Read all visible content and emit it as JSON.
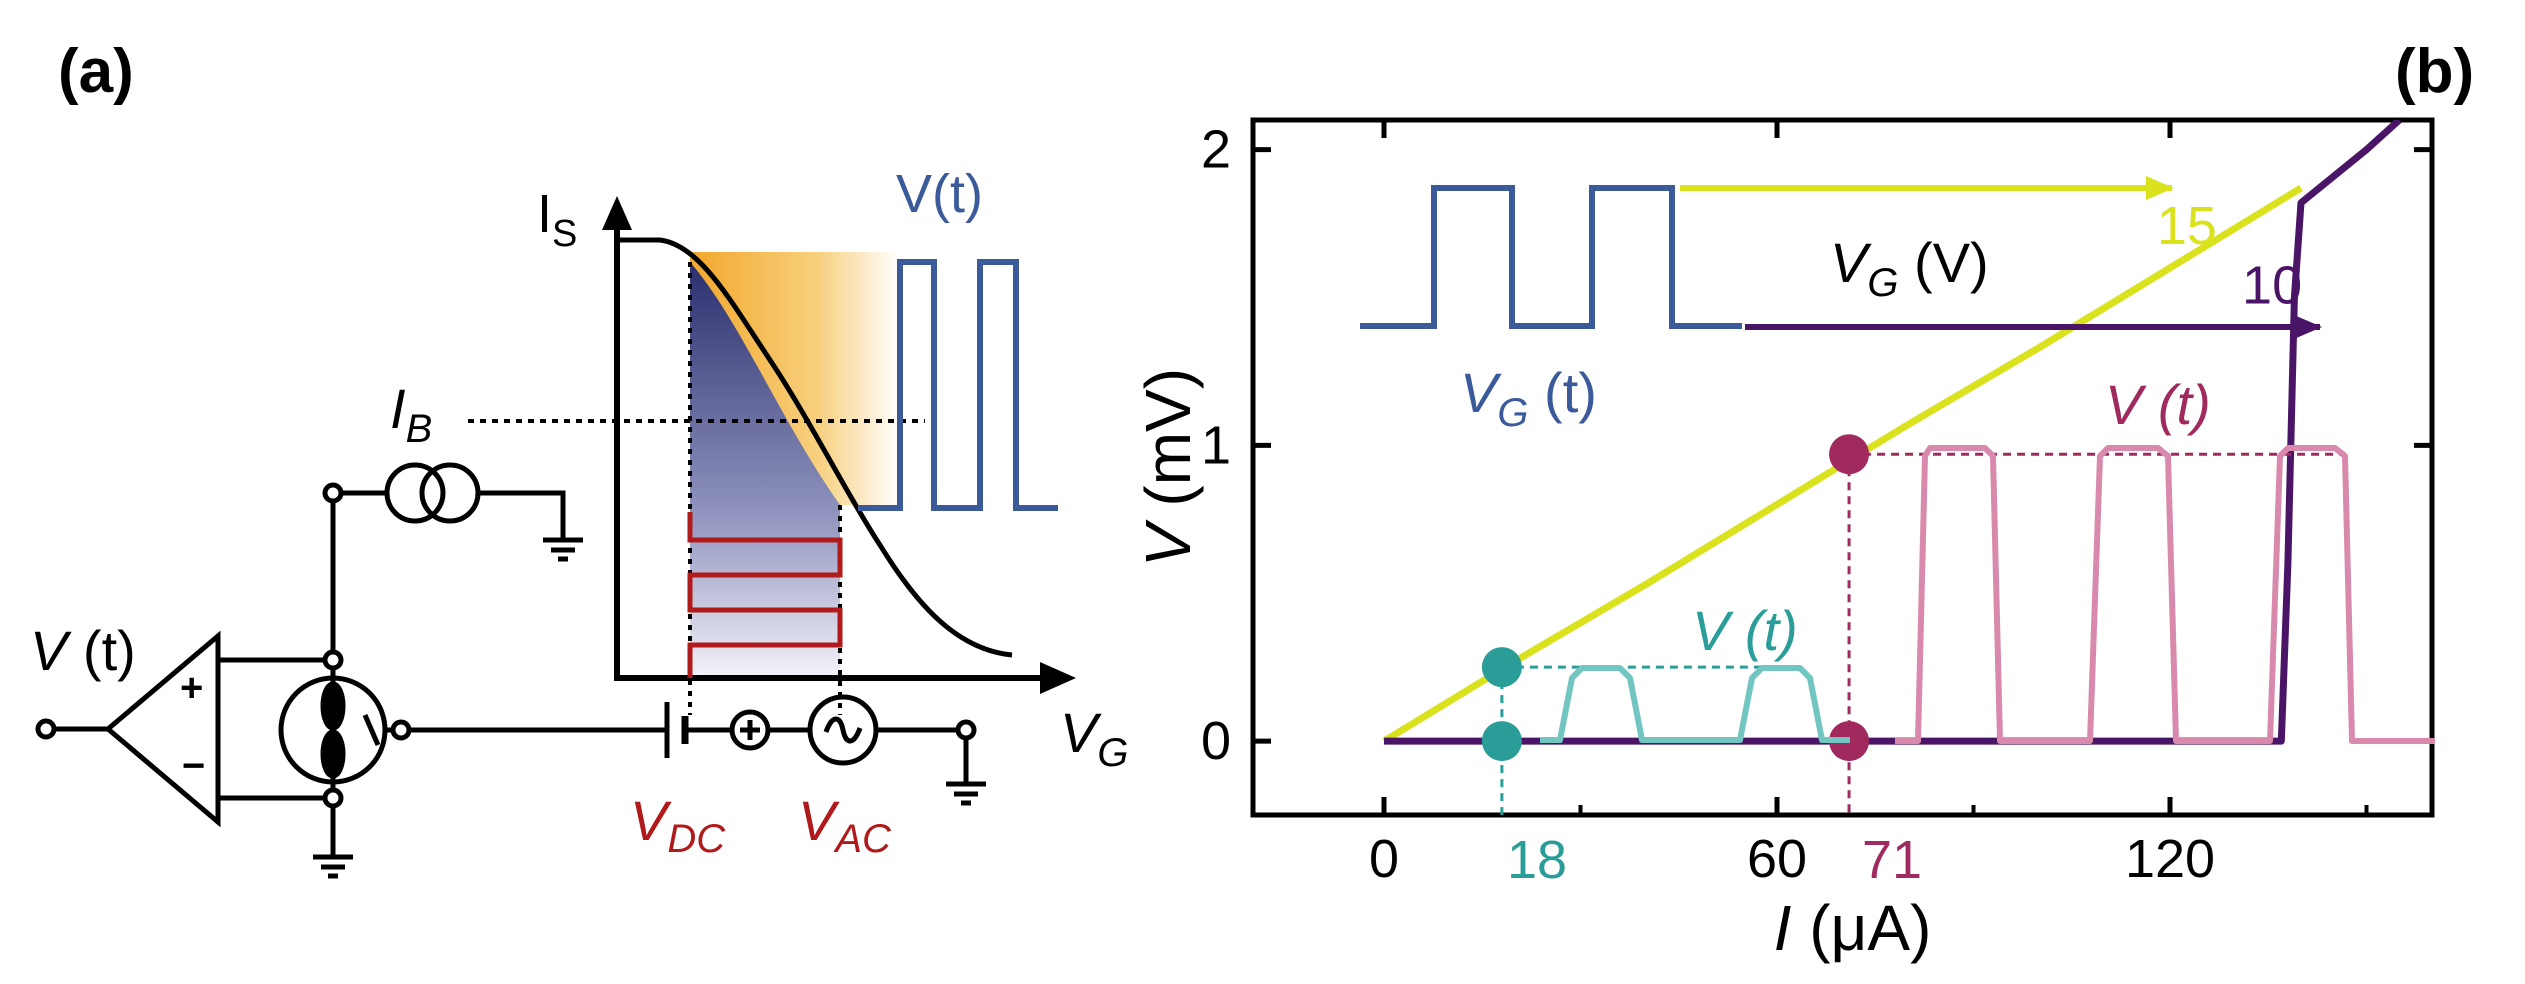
{
  "panel_a": {
    "label": "(a)",
    "curve_y_label": "I",
    "curve_y_sub": "S",
    "curve_x_label": "V",
    "curve_x_sub": "G",
    "signal_label": "V(t)",
    "bias_label": "I",
    "bias_sub": "B",
    "out_label_v": "V",
    "out_label_t": " (t)",
    "plus": "+",
    "minus": "−",
    "vdc_label": "V",
    "vdc_sub": "DC",
    "vac_label": "V",
    "vac_sub": "AC"
  },
  "panel_b": {
    "label": "(b)",
    "inset_gate_label_v": "V",
    "inset_gate_label_sub": "G",
    "inset_gate_label_t": " (t)",
    "gate_axis_label_v": "V",
    "gate_axis_label_sub": "G",
    "gate_axis_label_unit": " (V)",
    "teal_trace_label": "V (t)",
    "pink_trace_label": "V (t)",
    "marker_teal": "18",
    "marker_purple": "71",
    "colors": {
      "yellow": "#d9e21d",
      "purple": "#4a1566",
      "teal": "#2a9d98",
      "teal_light": "#72c6c1",
      "magenta": "#a02a5e",
      "pink": "#d889ac",
      "blue": "#3a5a9a",
      "red": "#b01a1a",
      "orange": "#f2a72b"
    }
  },
  "chart_data": {
    "type": "line",
    "title": "",
    "xlabel_symbol": "I",
    "xlabel_unit": " (μA)",
    "ylabel_symbol": "V",
    "ylabel_unit": " (mV)",
    "xlim": [
      -20,
      160
    ],
    "ylim": [
      -0.25,
      2.1
    ],
    "xticks": [
      0,
      60,
      120
    ],
    "yticks": [
      0,
      1,
      2
    ],
    "series": [
      {
        "name": "15",
        "color": "#d9e21d",
        "x": [
          0,
          20,
          40,
          60,
          80,
          100,
          120,
          140
        ],
        "y": [
          0.0,
          0.27,
          0.53,
          0.8,
          1.07,
          1.33,
          1.6,
          1.87
        ]
      },
      {
        "name": "10",
        "color": "#4a1566",
        "x": [
          0,
          30,
          60,
          90,
          120,
          137,
          138,
          139,
          140,
          150,
          155
        ],
        "y": [
          0.0,
          0.0,
          0.0,
          0.0,
          0.0,
          0.0,
          0.6,
          1.5,
          1.82,
          2.0,
          2.1
        ]
      }
    ],
    "markers": [
      {
        "x": 18,
        "y": 0.25,
        "color": "#2a9d98"
      },
      {
        "x": 18,
        "y": 0.0,
        "color": "#2a9d98"
      },
      {
        "x": 71,
        "y": 0.97,
        "color": "#a02a5e"
      },
      {
        "x": 71,
        "y": 0.0,
        "color": "#a02a5e"
      }
    ]
  }
}
